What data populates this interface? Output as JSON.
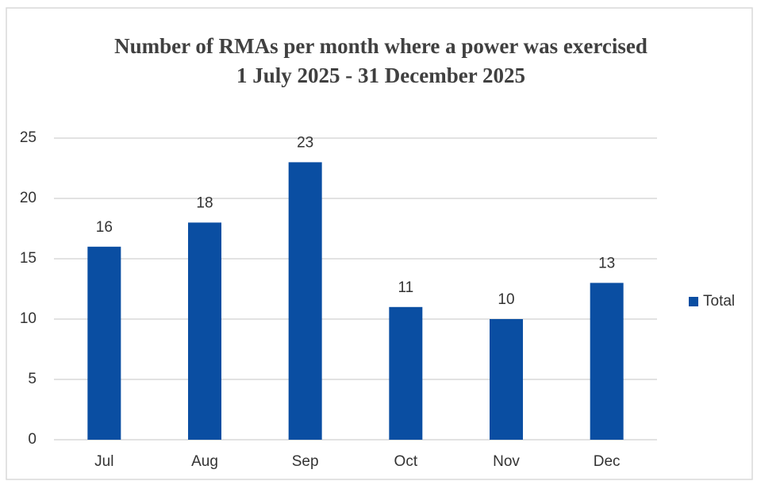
{
  "chart_data": {
    "type": "bar",
    "title": "Number of RMAs per month where a power was exercised",
    "subtitle": "1 July 2025 - 31 December 2025",
    "categories": [
      "Jul",
      "Aug",
      "Sep",
      "Oct",
      "Nov",
      "Dec"
    ],
    "series": [
      {
        "name": "Total",
        "color": "#0a4ea2",
        "values": [
          16,
          18,
          23,
          11,
          10,
          13
        ]
      }
    ],
    "ylim": [
      0,
      25
    ],
    "yticks": [
      0,
      5,
      10,
      15,
      20,
      25
    ],
    "grid": true,
    "legend": "right"
  }
}
